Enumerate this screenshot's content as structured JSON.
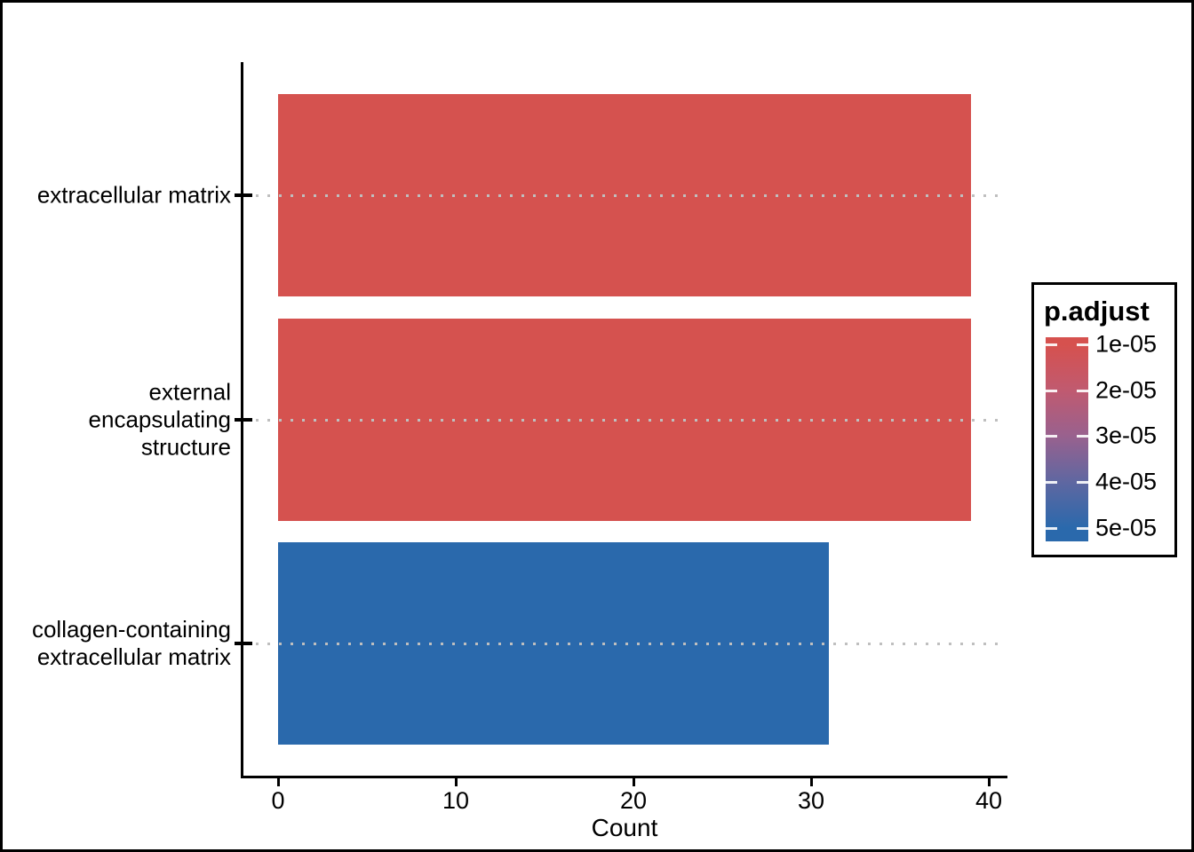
{
  "chart_data": {
    "type": "bar",
    "orientation": "horizontal",
    "title": "",
    "xlabel": "Count",
    "ylabel": "",
    "xlim": [
      0,
      40
    ],
    "xticks": [
      0,
      10,
      20,
      30,
      40
    ],
    "grid": "horizontal dotted gray lines at each category",
    "categories": [
      "extracellular matrix",
      "external encapsulating structure",
      "collagen-containing extracellular matrix"
    ],
    "category_label_lines": [
      [
        "extracellular matrix"
      ],
      [
        "external encapsulating",
        "structure"
      ],
      [
        "collagen-containing",
        "extracellular matrix"
      ]
    ],
    "values": [
      39,
      39,
      31
    ],
    "bar_colors": [
      "#D5524F",
      "#D5524F",
      "#2A69AC"
    ],
    "legend": {
      "title": "p.adjust",
      "position": "right",
      "type": "color-gradient",
      "tick_labels": [
        "1e-05",
        "2e-05",
        "3e-05",
        "4e-05",
        "5e-05"
      ],
      "gradient_stops": [
        "#D6514E",
        "#C05A70",
        "#99618E",
        "#5F67A1",
        "#2A69AC"
      ]
    }
  },
  "colors": {
    "bar_red": "#D5524F",
    "bar_blue": "#2A69AC",
    "axis": "#000000",
    "gridline": "#BFBFBF",
    "background": "#FFFFFF"
  }
}
